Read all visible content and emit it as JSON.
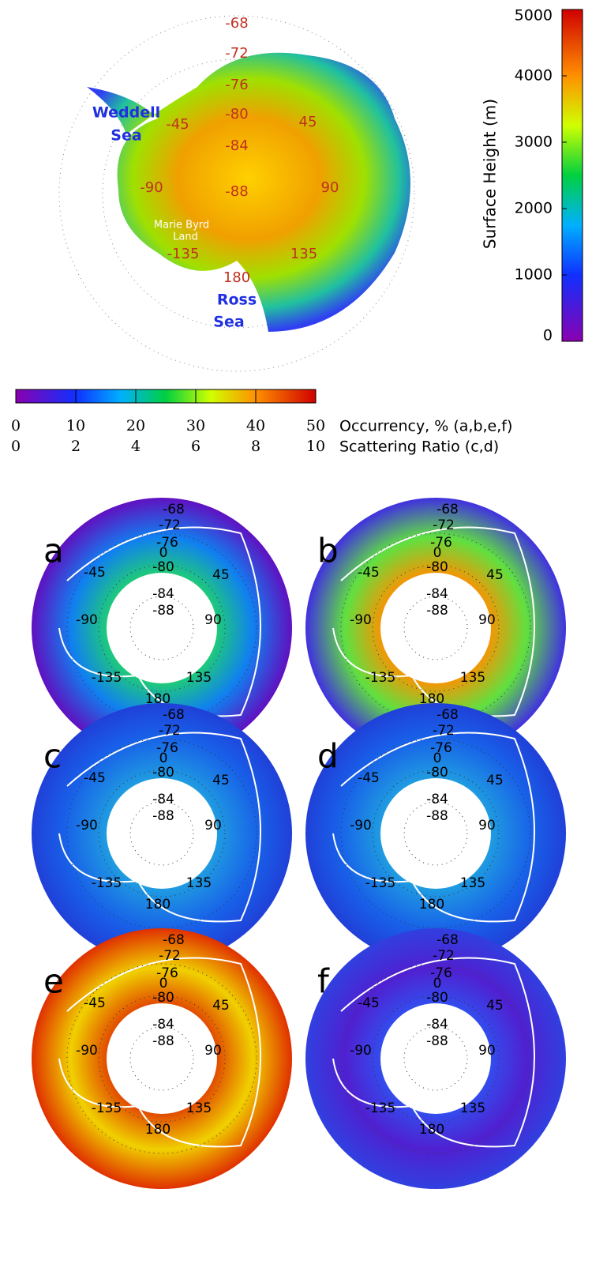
{
  "top_map": {
    "grid_labels": [
      "-68",
      "-72",
      "-76",
      "-80",
      "-84",
      "-88",
      "-45",
      "45",
      "-90",
      "90",
      "-135",
      "135",
      "180"
    ],
    "regions": [
      [
        "Weddell",
        "Sea"
      ],
      [
        "Marie Byrd",
        "Land"
      ],
      [
        "Ross",
        "Sea"
      ]
    ]
  },
  "height_colorbar": {
    "title": "Surface Height (m)",
    "range": [
      0,
      5000
    ],
    "ticks": [
      0,
      1000,
      2000,
      3000,
      4000,
      5000
    ]
  },
  "panel_colorbar": {
    "range": [
      0,
      50
    ],
    "ticks": [
      0,
      10,
      20,
      30,
      40,
      50
    ],
    "ticks_label": "Occurrency, % (a,b,e,f)",
    "range2": [
      0,
      10
    ],
    "ticks2": [
      0,
      2,
      4,
      6,
      8,
      10
    ],
    "ticks2_label": "Scattering Ratio (c,d)"
  },
  "panel_grid_labels": [
    "-68",
    "-72",
    "-76",
    "0",
    "-80",
    "-84",
    "-88",
    "-45",
    "45",
    "-90",
    "90",
    "-135",
    "135",
    "180"
  ],
  "panels": [
    "a",
    "b",
    "c",
    "d",
    "e",
    "f"
  ]
}
